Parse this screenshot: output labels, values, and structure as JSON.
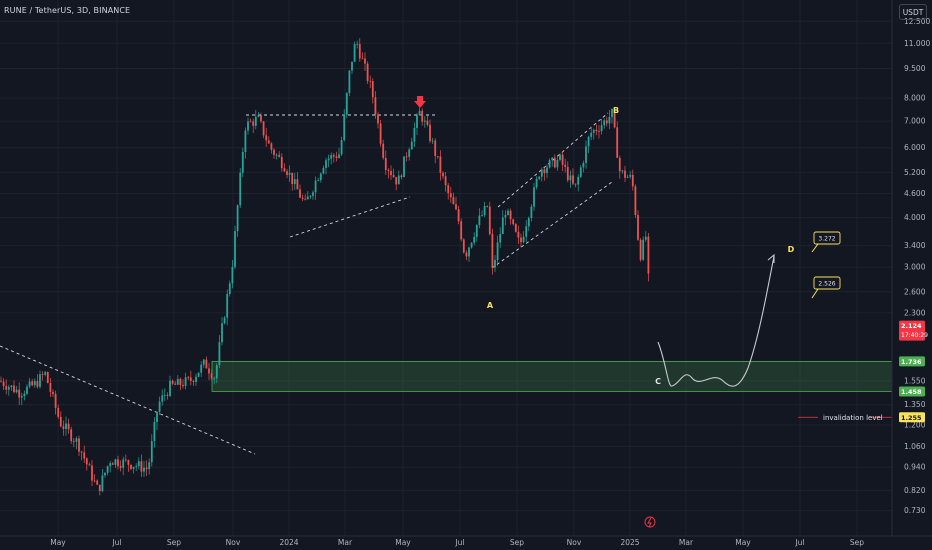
{
  "header": {
    "title": "RUNE / TetherUS, 3D, BINANCE",
    "currency": "USDT"
  },
  "chart_data": {
    "type": "candlestick",
    "price_axis": {
      "scale": "log",
      "range": [
        0.66,
        13.5
      ],
      "ticks": [
        "12.500",
        "11.000",
        "9.500",
        "8.000",
        "7.000",
        "6.000",
        "5.200",
        "4.600",
        "4.000",
        "3.400",
        "3.000",
        "2.600",
        "2.300",
        "1.550",
        "1.350",
        "1.200",
        "1.060",
        "0.940",
        "0.820",
        "0.730"
      ]
    },
    "time_axis": {
      "ticks": [
        "May",
        "Jul",
        "Sep",
        "Nov",
        "2024",
        "Mar",
        "May",
        "Jul",
        "Sep",
        "Nov",
        "2025",
        "Mar",
        "May",
        "Jul",
        "Sep"
      ]
    },
    "price_tags": [
      {
        "label": "2.124",
        "sub": "17:40:29",
        "value": 2.124,
        "color": "#f23645"
      },
      {
        "label": "1.736",
        "value": 1.736,
        "color": "#4caf50"
      },
      {
        "label": "1.458",
        "value": 1.458,
        "color": "#4caf50"
      },
      {
        "label": "1.255",
        "value": 1.255,
        "color": "#f9e25c"
      }
    ],
    "support_zone": {
      "low": 1.458,
      "high": 1.736,
      "color": "#4caf50"
    },
    "invalidation": {
      "label": "invalidation level",
      "value": 1.255
    },
    "wave_labels": [
      "A",
      "B",
      "C",
      "D"
    ],
    "targets": [
      {
        "label": "3.272",
        "value": 3.272
      },
      {
        "label": "2.526",
        "value": 2.526
      }
    ],
    "up_color": "#26a69a",
    "down_color": "#ef5350",
    "grid": true
  }
}
